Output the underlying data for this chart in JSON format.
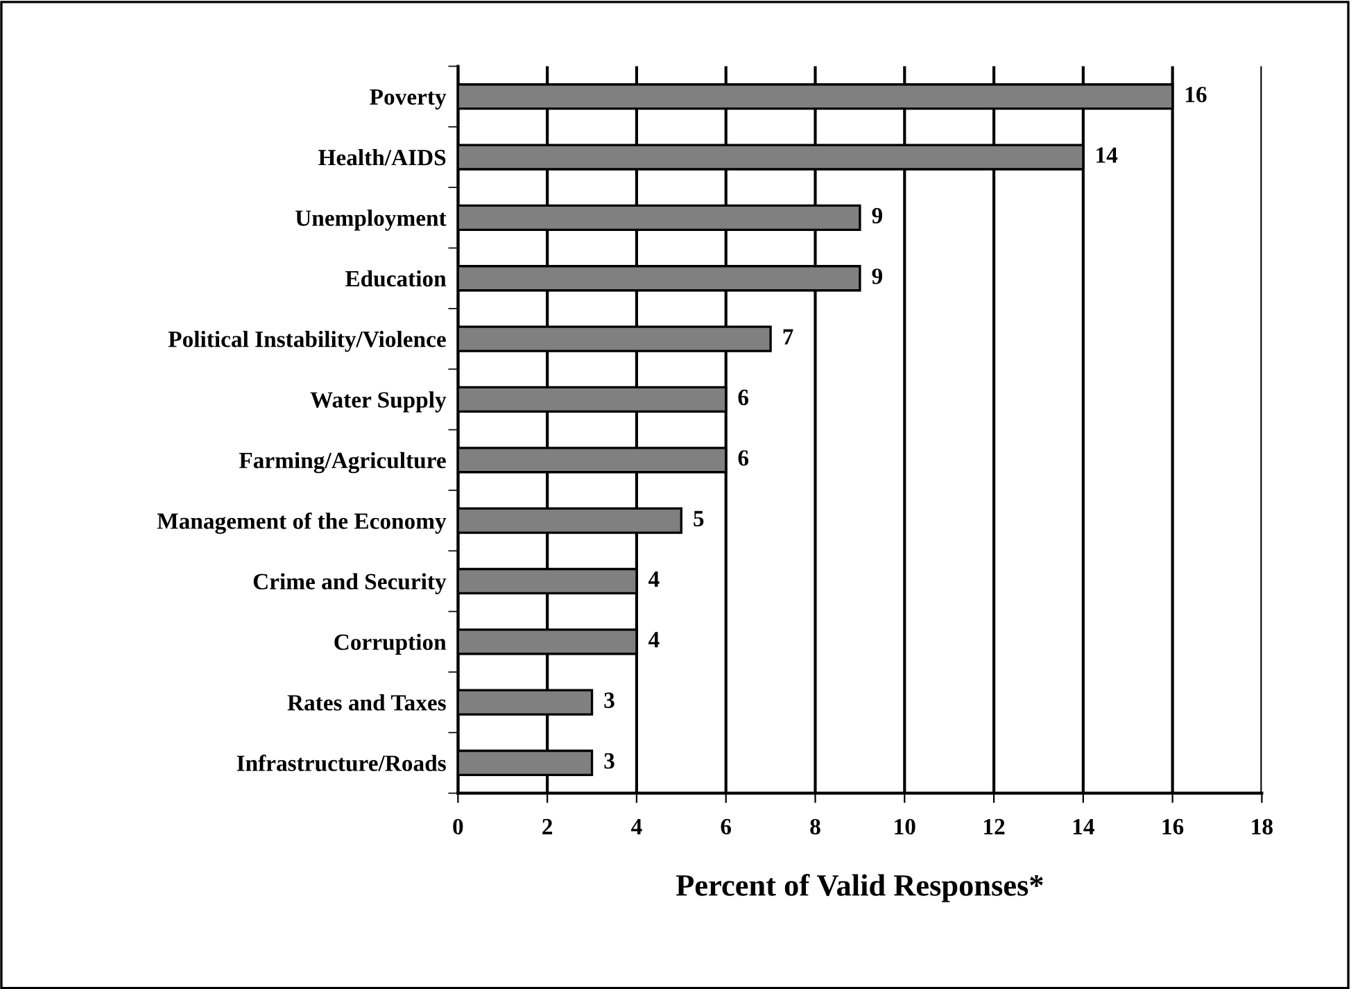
{
  "chart_data": {
    "type": "bar",
    "orientation": "horizontal",
    "categories": [
      "Poverty",
      "Health/AIDS",
      "Unemployment",
      "Education",
      "Political Instability/Violence",
      "Water Supply",
      "Farming/Agriculture",
      "Management of the Economy",
      "Crime and Security",
      "Corruption",
      "Rates and Taxes",
      "Infrastructure/Roads"
    ],
    "values": [
      16,
      14,
      9,
      9,
      7,
      6,
      6,
      5,
      4,
      4,
      3,
      3
    ],
    "color": "#808080",
    "xlabel": "Percent of Valid Responses*",
    "xlim": [
      0,
      18
    ],
    "xticks": [
      0,
      2,
      4,
      6,
      8,
      10,
      12,
      14,
      16,
      18
    ],
    "grid": "x",
    "data_labels": true
  }
}
